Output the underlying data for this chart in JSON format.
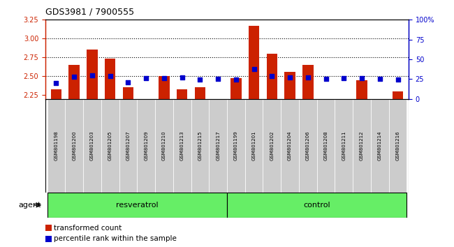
{
  "title": "GDS3981 / 7900555",
  "samples": [
    "GSM801198",
    "GSM801200",
    "GSM801203",
    "GSM801205",
    "GSM801207",
    "GSM801209",
    "GSM801210",
    "GSM801213",
    "GSM801215",
    "GSM801217",
    "GSM801199",
    "GSM801201",
    "GSM801202",
    "GSM801204",
    "GSM801206",
    "GSM801208",
    "GSM801211",
    "GSM801212",
    "GSM801214",
    "GSM801216"
  ],
  "transformed_count": [
    2.33,
    2.65,
    2.85,
    2.73,
    2.35,
    2.2,
    2.5,
    2.33,
    2.35,
    2.2,
    2.47,
    3.17,
    2.8,
    2.56,
    2.65,
    2.2,
    2.2,
    2.45,
    2.2,
    2.3
  ],
  "percentile_rank": [
    20,
    28,
    30,
    29,
    21,
    26,
    26,
    27,
    24,
    25,
    24,
    38,
    29,
    27,
    27,
    25,
    26,
    26,
    25,
    24
  ],
  "resveratrol_count": 10,
  "control_count": 10,
  "bar_color": "#cc2200",
  "dot_color": "#0000cc",
  "ylim_left": [
    2.2,
    3.25
  ],
  "ylim_right": [
    0,
    100
  ],
  "yticks_left": [
    2.25,
    2.5,
    2.75,
    3.0,
    3.25
  ],
  "yticks_right": [
    0,
    25,
    50,
    75,
    100
  ],
  "ytick_labels_right": [
    "0",
    "25",
    "50",
    "75",
    "100%"
  ],
  "grid_lines": [
    2.5,
    2.75,
    3.0
  ],
  "background_plot": "#ffffff",
  "sample_bg_color": "#cccccc",
  "green_band_color": "#66ee66",
  "agent_label": "agent",
  "resveratrol_label": "resveratrol",
  "control_label": "control",
  "legend_bar_label": "transformed count",
  "legend_dot_label": "percentile rank within the sample",
  "title_color": "#000000",
  "left_axis_color": "#cc2200",
  "right_axis_color": "#0000cc"
}
